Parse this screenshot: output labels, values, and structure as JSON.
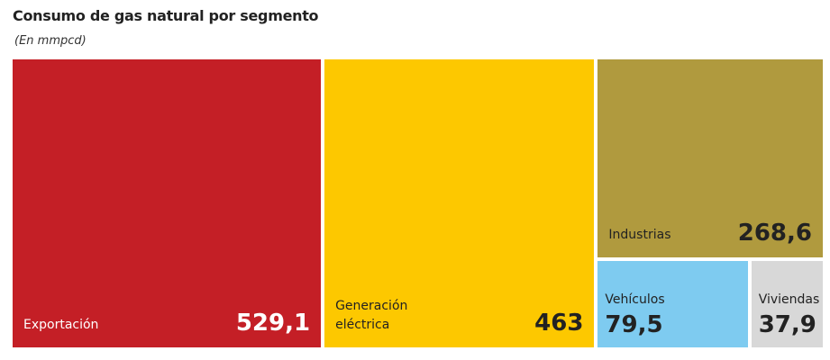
{
  "chart_data": {
    "type": "treemap",
    "title": "Consumo de gas natural por segmento",
    "subtitle": "(En mmpcd)",
    "categories": [
      "Exportación",
      "Generación eléctrica",
      "Industrias",
      "Vehículos",
      "Viviendas"
    ],
    "values": [
      529.1,
      463,
      268.6,
      79.5,
      37.9
    ],
    "value_labels": [
      "529,1",
      "463",
      "268,6",
      "79,5",
      "37,9"
    ],
    "colors": [
      "#c41f26",
      "#fdc800",
      "#b09a3e",
      "#7ecbf0",
      "#d8d8d8"
    ]
  }
}
